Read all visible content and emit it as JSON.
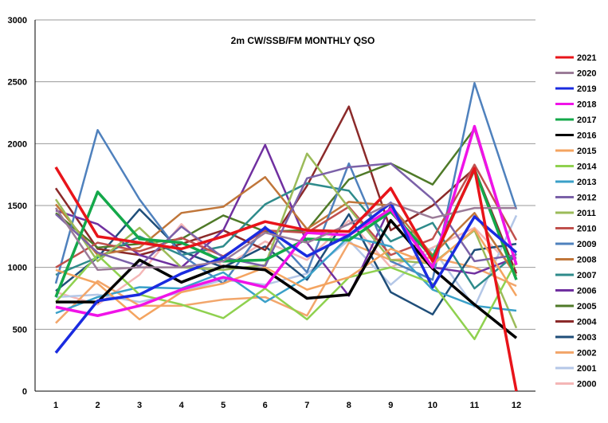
{
  "chart_data": {
    "type": "line",
    "title": "2m CW/SSB/FM  MONTHLY QSO",
    "xlabel": "",
    "ylabel": "",
    "x": [
      1,
      2,
      3,
      4,
      5,
      6,
      7,
      8,
      9,
      10,
      11,
      12
    ],
    "ylim": [
      0,
      3000
    ],
    "yticks": [
      0,
      500,
      1000,
      1500,
      2000,
      2500,
      3000
    ],
    "grid": "horizontal",
    "legend_position": "right",
    "series": [
      {
        "name": "2021",
        "color": "#e8141a",
        "values": [
          1810,
          1250,
          1200,
          1150,
          1250,
          1370,
          1300,
          1290,
          1640,
          1050,
          1800,
          0
        ]
      },
      {
        "name": "2020",
        "color": "#9b7c98",
        "values": [
          1480,
          980,
          1000,
          1000,
          1050,
          1280,
          1200,
          1350,
          1520,
          1400,
          1480,
          1480
        ]
      },
      {
        "name": "2019",
        "color": "#1a2be0",
        "values": [
          310,
          730,
          780,
          950,
          1080,
          1320,
          1090,
          1260,
          1520,
          840,
          1410,
          1120
        ]
      },
      {
        "name": "2018",
        "color": "#f013e8",
        "values": [
          680,
          610,
          690,
          820,
          920,
          840,
          1280,
          1260,
          1470,
          1000,
          2140,
          1020
        ]
      },
      {
        "name": "2017",
        "color": "#14a84a",
        "values": [
          760,
          1610,
          1230,
          1200,
          1050,
          1060,
          1230,
          1220,
          1450,
          1080,
          1790,
          900
        ]
      },
      {
        "name": "2016",
        "color": "#000000",
        "values": [
          720,
          720,
          1060,
          880,
          1010,
          980,
          750,
          780,
          1380,
          990,
          700,
          430
        ]
      },
      {
        "name": "2015",
        "color": "#f4a460",
        "values": [
          980,
          870,
          580,
          800,
          870,
          1000,
          820,
          920,
          1150,
          1020,
          1310,
          770
        ]
      },
      {
        "name": "2014",
        "color": "#8fd14f",
        "values": [
          720,
          1100,
          780,
          700,
          590,
          830,
          580,
          920,
          1000,
          870,
          420,
          1050
        ]
      },
      {
        "name": "2013",
        "color": "#3aa0c8",
        "values": [
          630,
          760,
          840,
          830,
          960,
          720,
          920,
          1250,
          1170,
          820,
          690,
          650
        ]
      },
      {
        "name": "2012",
        "color": "#7b61a8",
        "values": [
          1430,
          1120,
          1010,
          1330,
          1080,
          1010,
          1720,
          1810,
          1840,
          1550,
          1050,
          1100
        ]
      },
      {
        "name": "2011",
        "color": "#9bbb59",
        "values": [
          1550,
          1050,
          1320,
          1000,
          980,
          1020,
          1920,
          1480,
          1060,
          1030,
          1300,
          510
        ]
      },
      {
        "name": "2010",
        "color": "#c0504d",
        "values": [
          1000,
          1200,
          1130,
          1240,
          1090,
          1300,
          1280,
          1490,
          1100,
          1230,
          1830,
          1220
        ]
      },
      {
        "name": "2009",
        "color": "#4f81bd",
        "values": [
          870,
          2110,
          1550,
          1100,
          870,
          1330,
          960,
          1840,
          1050,
          900,
          2490,
          1470
        ]
      },
      {
        "name": "2008",
        "color": "#c0763a",
        "values": [
          1510,
          1100,
          1160,
          1440,
          1490,
          1730,
          1310,
          1530,
          1500,
          1100,
          1440,
          930
        ]
      },
      {
        "name": "2007",
        "color": "#2e8b8b",
        "values": [
          940,
          1080,
          1250,
          1100,
          1170,
          1510,
          1680,
          1620,
          1210,
          1360,
          830,
          1110
        ]
      },
      {
        "name": "2006",
        "color": "#7030a0",
        "values": [
          1460,
          1350,
          1100,
          1000,
          1300,
          1990,
          1200,
          770,
          1500,
          1000,
          950,
          1080
        ]
      },
      {
        "name": "2005",
        "color": "#4f7a28",
        "values": [
          1440,
          1160,
          1190,
          1230,
          1420,
          1290,
          1300,
          1710,
          1840,
          1670,
          2120,
          1020
        ]
      },
      {
        "name": "2004",
        "color": "#8b2a2a",
        "values": [
          1640,
          1150,
          1100,
          1190,
          1300,
          1140,
          1660,
          2300,
          1300,
          1500,
          1800,
          950
        ]
      },
      {
        "name": "2003",
        "color": "#1f4e79",
        "values": [
          810,
          1080,
          1470,
          1130,
          1000,
          1170,
          900,
          1430,
          800,
          620,
          1140,
          1190
        ]
      },
      {
        "name": "2002",
        "color": "#f2a66b",
        "values": [
          550,
          890,
          690,
          690,
          740,
          760,
          610,
          1200,
          1060,
          1080,
          1000,
          850
        ]
      },
      {
        "name": "2001",
        "color": "#b4c7e7",
        "values": [
          760,
          780,
          720,
          800,
          900,
          860,
          950,
          1220,
          860,
          1150,
          680,
          1420
        ]
      },
      {
        "name": "2000",
        "color": "#f4b6b6",
        "values": [
          800,
          700,
          940,
          1350,
          1000,
          1210,
          1060,
          1380,
          1000,
          1160,
          1320,
          970
        ]
      }
    ]
  }
}
